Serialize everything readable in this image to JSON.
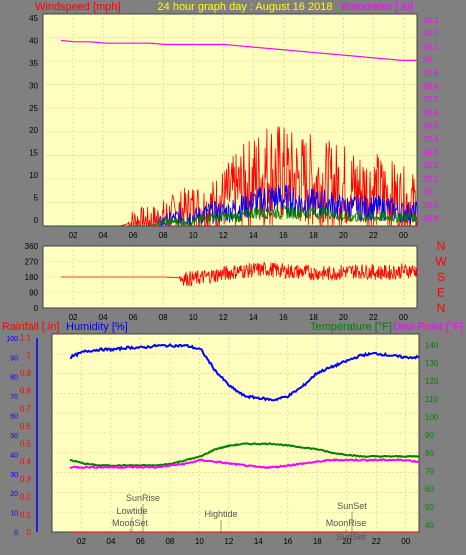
{
  "header": {
    "left_label": "Windspeed [mph]",
    "title": "24 hour graph day : August 16 2018",
    "right_label": "Barometer [.in]"
  },
  "colors": {
    "background": "#808080",
    "plot_bg": "#FFFFC0",
    "grid": "#E8C878",
    "wind": "#FF0000",
    "wind_series_2": "#0000FF",
    "wind_series_3": "#008000",
    "barometer": "#FF00FF",
    "rainfall": "#FF0000",
    "humidity": "#0000FF",
    "temperature": "#008000",
    "dewpoint": "#FF00FF",
    "events": "#555555"
  },
  "x_ticks": [
    "02",
    "04",
    "06",
    "08",
    "10",
    "12",
    "14",
    "16",
    "18",
    "20",
    "22",
    "00"
  ],
  "wind_chart": {
    "left_ticks": [
      "0",
      "5",
      "10",
      "15",
      "20",
      "25",
      "30",
      "35",
      "40",
      "45"
    ],
    "right_ticks": [
      "28.8",
      "28.9",
      "29",
      "29.1",
      "29.2",
      "29.3",
      "29.4",
      "29.5",
      "29.6",
      "29.7",
      "29.8",
      "29.9",
      "30",
      "30.1",
      "30.2",
      "30.3"
    ]
  },
  "direction_chart": {
    "left_ticks": [
      "0",
      "90",
      "180",
      "270",
      "360"
    ],
    "compass": [
      "N",
      "W",
      "S",
      "E",
      "N"
    ]
  },
  "weather_chart": {
    "rainfall_label": "Rainfall [.in]",
    "humidity_label": "Humidity [%]",
    "temperature_label": "Temperature [°F]",
    "dewpoint_label": "Dew Point [°F]",
    "rain_ticks": [
      "0",
      "0.1",
      "0.2",
      "0.3",
      "0.4",
      "0.5",
      "0.6",
      "0.7",
      "0.8",
      "0.9",
      "1",
      "1.1"
    ],
    "humidity_ticks": [
      "0",
      "10",
      "20",
      "30",
      "40",
      "50",
      "60",
      "70",
      "80",
      "90",
      "100"
    ],
    "temp_ticks": [
      "40",
      "50",
      "60",
      "70",
      "80",
      "90",
      "100",
      "110",
      "120",
      "130",
      "140"
    ],
    "events": [
      "SunRise",
      "Lowtide",
      "MoonSet",
      "Hightide",
      "SunSet",
      "MoonRise",
      "SunSet"
    ]
  },
  "chart_data": [
    {
      "type": "line",
      "title": "24 hour graph day : August 16 2018",
      "ylabel": "Windspeed [mph]",
      "y2label": "Barometer [.in]",
      "xlabel": "",
      "ylim": [
        0,
        47
      ],
      "y2lim": [
        28.75,
        30.35
      ],
      "x": [
        0,
        1,
        2,
        3,
        4,
        5,
        6,
        7,
        8,
        9,
        10,
        11,
        12,
        13,
        14,
        15,
        16,
        17,
        18,
        19,
        20,
        21,
        22,
        23,
        24
      ],
      "series": [
        {
          "name": "Windspeed [mph]",
          "axis": "left",
          "values": [
            0,
            0,
            0,
            0,
            0,
            1,
            1,
            2,
            3,
            4,
            4,
            6,
            8,
            10,
            12,
            11,
            10,
            10,
            9,
            9,
            8,
            8,
            7,
            6,
            5
          ]
        },
        {
          "values": [
            0,
            0,
            0,
            0,
            0,
            0,
            0,
            1,
            2,
            2,
            3,
            3,
            4,
            5,
            6,
            6,
            5,
            5,
            5,
            4,
            4,
            4,
            4,
            3,
            3
          ]
        },
        {
          "values": [
            0,
            0,
            0,
            0,
            0,
            0,
            0,
            1,
            1,
            1,
            2,
            2,
            2,
            3,
            3,
            3,
            3,
            3,
            3,
            2,
            2,
            2,
            2,
            2,
            2
          ]
        },
        {
          "name": "Barometer [.in]",
          "axis": "right",
          "values": [
            30.15,
            30.14,
            30.14,
            30.13,
            30.13,
            30.13,
            30.13,
            30.12,
            30.12,
            30.12,
            30.12,
            30.12,
            30.11,
            30.1,
            30.09,
            30.08,
            30.07,
            30.06,
            30.05,
            30.04,
            30.03,
            30.02,
            30.01,
            30.0,
            30.0
          ]
        }
      ]
    },
    {
      "type": "line",
      "title": "",
      "ylabel": "",
      "ylim": [
        0,
        360
      ],
      "x": [
        0,
        1,
        2,
        3,
        4,
        5,
        6,
        7,
        8,
        9,
        10,
        11,
        12,
        13,
        14,
        15,
        16,
        17,
        18,
        19,
        20,
        21,
        22,
        23,
        24
      ],
      "series": [
        {
          "values": [
            180,
            180,
            180,
            180,
            180,
            180,
            180,
            180,
            175,
            170,
            185,
            200,
            215,
            220,
            225,
            215,
            210,
            205,
            200,
            210,
            215,
            210,
            205,
            215,
            220
          ]
        }
      ]
    },
    {
      "type": "line",
      "title": "",
      "xlabel": "",
      "ylabel": "Humidity [%]",
      "y2label": "Temperature [°F]",
      "ylim": [
        0,
        102
      ],
      "y2lim": [
        36,
        146
      ],
      "rain_ylim": [
        0,
        1.12
      ],
      "x": [
        0,
        1,
        2,
        3,
        4,
        5,
        6,
        7,
        8,
        9,
        10,
        11,
        12,
        13,
        14,
        15,
        16,
        17,
        18,
        19,
        20,
        21,
        22,
        23,
        24
      ],
      "series": [
        {
          "name": "Rainfall [.in]",
          "axis": "rain",
          "values": [
            0,
            0,
            0,
            0,
            0,
            0,
            0,
            0,
            0,
            0,
            0,
            0,
            0,
            0,
            0,
            0,
            0,
            0,
            0,
            0,
            0,
            0,
            0,
            0,
            0
          ]
        },
        {
          "name": "Humidity [%]",
          "axis": "left",
          "values": [
            90,
            93,
            94,
            94,
            95,
            95,
            96,
            96,
            96,
            94,
            83,
            75,
            70,
            69,
            68,
            70,
            75,
            82,
            85,
            88,
            91,
            92,
            91,
            90,
            90
          ]
        },
        {
          "name": "Temperature [°F]",
          "axis": "right",
          "values": [
            76,
            74,
            73,
            73,
            73,
            73,
            73,
            74,
            76,
            78,
            82,
            84,
            85,
            85,
            85,
            84,
            83,
            82,
            80,
            79,
            78,
            78,
            78,
            78,
            78
          ]
        },
        {
          "name": "Dew Point [°F]",
          "axis": "right",
          "values": [
            72,
            72,
            72,
            72,
            72,
            72,
            72,
            73,
            74,
            76,
            75,
            74,
            73,
            72,
            72,
            73,
            74,
            75,
            76,
            76,
            76,
            76,
            76,
            76,
            75
          ]
        }
      ]
    }
  ]
}
